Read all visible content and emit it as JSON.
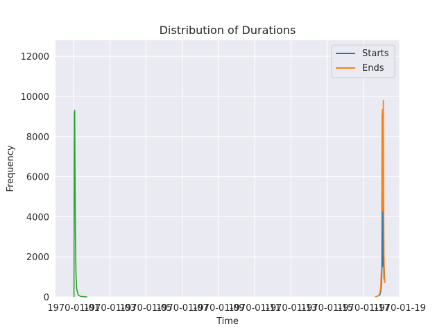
{
  "chart_data": {
    "type": "line",
    "title": "Distribution of Durations",
    "xlabel": "Time",
    "ylabel": "Frequency",
    "xlim": [
      0.0,
      19.0
    ],
    "ylim": [
      0,
      12800
    ],
    "x_ticks": [
      {
        "value": 1,
        "label": "1970-01-01"
      },
      {
        "value": 3,
        "label": "1970-01-03"
      },
      {
        "value": 5,
        "label": "1970-01-05"
      },
      {
        "value": 7,
        "label": "1970-01-07"
      },
      {
        "value": 9,
        "label": "1970-01-09"
      },
      {
        "value": 11,
        "label": "1970-01-11"
      },
      {
        "value": 13,
        "label": "1970-01-13"
      },
      {
        "value": 15,
        "label": "1970-01-15"
      },
      {
        "value": 17,
        "label": "1970-01-17"
      },
      {
        "value": 19,
        "label": "1970-01-19"
      }
    ],
    "y_ticks": [
      0,
      2000,
      4000,
      6000,
      8000,
      10000,
      12000
    ],
    "grid": true,
    "legend_position": "top-right",
    "series": [
      {
        "name": "Starts",
        "color": "#1f77b4",
        "points": [
          [
            17.65,
            0
          ],
          [
            17.75,
            30
          ],
          [
            17.85,
            60
          ],
          [
            17.92,
            120
          ],
          [
            17.96,
            300
          ],
          [
            18.0,
            600
          ],
          [
            18.02,
            1200
          ],
          [
            18.04,
            3200
          ],
          [
            18.06,
            1500
          ],
          [
            18.08,
            4600
          ],
          [
            18.1,
            2400
          ],
          [
            18.12,
            1800
          ],
          [
            18.14,
            900
          ],
          [
            18.16,
            1400
          ],
          [
            18.18,
            700
          ]
        ]
      },
      {
        "name": "Ends",
        "color": "#ff7f0e",
        "points": [
          [
            17.65,
            0
          ],
          [
            17.8,
            40
          ],
          [
            17.9,
            150
          ],
          [
            17.96,
            500
          ],
          [
            18.0,
            1500
          ],
          [
            18.02,
            6000
          ],
          [
            18.03,
            9100
          ],
          [
            18.04,
            8200
          ],
          [
            18.05,
            9350
          ],
          [
            18.06,
            4300
          ],
          [
            18.07,
            6200
          ],
          [
            18.08,
            8800
          ],
          [
            18.09,
            5900
          ],
          [
            18.1,
            9800
          ],
          [
            18.12,
            4800
          ],
          [
            18.14,
            2100
          ],
          [
            18.17,
            700
          ]
        ]
      },
      {
        "color": "#2ca02c",
        "points": [
          [
            1.02,
            0
          ],
          [
            1.03,
            6100
          ],
          [
            1.04,
            9200
          ],
          [
            1.06,
            9300
          ],
          [
            1.08,
            6000
          ],
          [
            1.1,
            3000
          ],
          [
            1.13,
            1200
          ],
          [
            1.17,
            400
          ],
          [
            1.25,
            100
          ],
          [
            1.4,
            20
          ],
          [
            1.6,
            10
          ],
          [
            1.75,
            0
          ]
        ]
      }
    ]
  }
}
